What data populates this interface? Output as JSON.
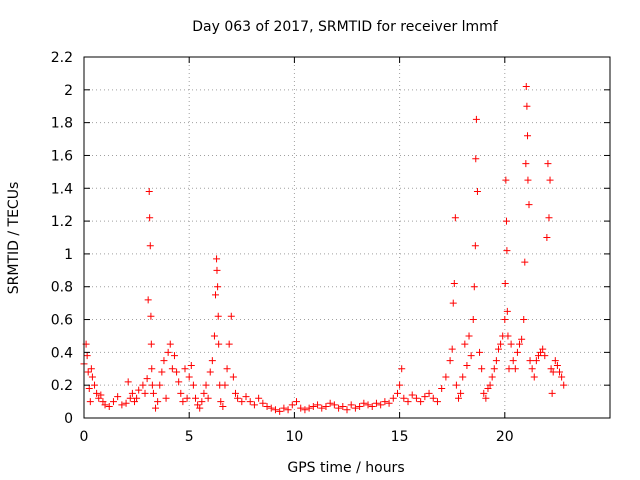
{
  "chart_data": {
    "type": "scatter",
    "title": "Day 063 of 2017, SRMTID for receiver lmmf",
    "xlabel": "GPS time / hours",
    "ylabel": "SRMTID / TECUs",
    "xlim": [
      0,
      25
    ],
    "ylim": [
      0,
      2.2
    ],
    "xticks": [
      0,
      5,
      10,
      15,
      20
    ],
    "xtick_labels": [
      "0",
      "5",
      "10",
      "15",
      "20"
    ],
    "yticks": [
      0,
      0.2,
      0.4,
      0.6,
      0.8,
      1,
      1.2,
      1.4,
      1.6,
      1.8,
      2,
      2.2
    ],
    "ytick_labels": [
      "0",
      "0.2",
      "0.4",
      "0.6",
      "0.8",
      "1",
      "1.2",
      "1.4",
      "1.6",
      "1.8",
      "2",
      "2.2"
    ],
    "grid": true,
    "marker": "plus",
    "color": "#ff0000",
    "series": [
      {
        "name": "SRMTID",
        "x": [
          0.0,
          0.1,
          0.15,
          0.2,
          0.25,
          0.3,
          0.35,
          0.4,
          0.5,
          0.6,
          0.7,
          0.8,
          0.9,
          1.0,
          1.2,
          1.4,
          1.6,
          1.8,
          2.0,
          2.1,
          2.2,
          2.3,
          2.4,
          2.5,
          2.6,
          2.8,
          2.9,
          3.0,
          3.05,
          3.1,
          3.12,
          3.15,
          3.18,
          3.2,
          3.22,
          3.25,
          3.3,
          3.4,
          3.5,
          3.6,
          3.7,
          3.8,
          3.9,
          4.0,
          4.1,
          4.2,
          4.3,
          4.4,
          4.5,
          4.6,
          4.7,
          4.8,
          4.9,
          5.0,
          5.1,
          5.2,
          5.3,
          5.4,
          5.5,
          5.6,
          5.7,
          5.8,
          5.9,
          6.0,
          6.1,
          6.2,
          6.25,
          6.3,
          6.32,
          6.35,
          6.38,
          6.4,
          6.45,
          6.5,
          6.6,
          6.7,
          6.8,
          6.9,
          7.0,
          7.1,
          7.2,
          7.3,
          7.5,
          7.7,
          7.9,
          8.1,
          8.3,
          8.5,
          8.7,
          8.9,
          9.1,
          9.3,
          9.5,
          9.7,
          9.9,
          10.1,
          10.3,
          10.5,
          10.7,
          10.9,
          11.1,
          11.3,
          11.5,
          11.7,
          11.9,
          12.1,
          12.3,
          12.5,
          12.7,
          12.9,
          13.1,
          13.3,
          13.5,
          13.7,
          13.9,
          14.1,
          14.3,
          14.5,
          14.7,
          14.9,
          15.0,
          15.1,
          15.2,
          15.4,
          15.6,
          15.8,
          16.0,
          16.2,
          16.4,
          16.6,
          16.8,
          17.0,
          17.2,
          17.4,
          17.5,
          17.55,
          17.6,
          17.65,
          17.7,
          17.8,
          17.9,
          18.0,
          18.1,
          18.2,
          18.3,
          18.4,
          18.5,
          18.55,
          18.6,
          18.62,
          18.65,
          18.7,
          18.8,
          18.9,
          19.0,
          19.1,
          19.2,
          19.3,
          19.4,
          19.5,
          19.6,
          19.7,
          19.8,
          19.9,
          20.0,
          20.02,
          20.05,
          20.08,
          20.1,
          20.12,
          20.15,
          20.2,
          20.3,
          20.4,
          20.5,
          20.6,
          20.7,
          20.8,
          20.9,
          20.95,
          21.0,
          21.02,
          21.05,
          21.08,
          21.1,
          21.15,
          21.2,
          21.3,
          21.4,
          21.5,
          21.6,
          21.7,
          21.8,
          21.9,
          22.0,
          22.05,
          22.1,
          22.15,
          22.2,
          22.25,
          22.3,
          22.4,
          22.5,
          22.6,
          22.7,
          22.8
        ],
        "y": [
          0.33,
          0.45,
          0.38,
          0.28,
          0.18,
          0.1,
          0.3,
          0.25,
          0.2,
          0.15,
          0.12,
          0.14,
          0.1,
          0.08,
          0.07,
          0.1,
          0.13,
          0.08,
          0.09,
          0.22,
          0.12,
          0.15,
          0.1,
          0.12,
          0.17,
          0.2,
          0.15,
          0.24,
          0.72,
          1.38,
          1.22,
          1.05,
          0.62,
          0.45,
          0.3,
          0.2,
          0.15,
          0.06,
          0.1,
          0.2,
          0.28,
          0.35,
          0.12,
          0.4,
          0.45,
          0.3,
          0.38,
          0.28,
          0.22,
          0.15,
          0.1,
          0.3,
          0.12,
          0.25,
          0.32,
          0.2,
          0.12,
          0.08,
          0.06,
          0.1,
          0.15,
          0.2,
          0.12,
          0.28,
          0.35,
          0.5,
          0.75,
          0.97,
          0.9,
          0.8,
          0.62,
          0.45,
          0.2,
          0.1,
          0.07,
          0.2,
          0.3,
          0.45,
          0.62,
          0.25,
          0.15,
          0.12,
          0.1,
          0.13,
          0.1,
          0.08,
          0.12,
          0.09,
          0.07,
          0.06,
          0.05,
          0.04,
          0.06,
          0.05,
          0.08,
          0.1,
          0.06,
          0.05,
          0.06,
          0.07,
          0.08,
          0.06,
          0.07,
          0.09,
          0.08,
          0.06,
          0.07,
          0.05,
          0.08,
          0.06,
          0.07,
          0.09,
          0.08,
          0.07,
          0.09,
          0.08,
          0.1,
          0.09,
          0.12,
          0.15,
          0.2,
          0.3,
          0.12,
          0.1,
          0.14,
          0.12,
          0.1,
          0.13,
          0.15,
          0.12,
          0.1,
          0.18,
          0.25,
          0.35,
          0.42,
          0.7,
          0.82,
          1.22,
          0.2,
          0.12,
          0.15,
          0.25,
          0.45,
          0.32,
          0.5,
          0.38,
          0.6,
          0.8,
          1.05,
          1.58,
          1.82,
          1.38,
          0.4,
          0.3,
          0.15,
          0.12,
          0.18,
          0.2,
          0.25,
          0.3,
          0.35,
          0.42,
          0.45,
          0.5,
          0.6,
          0.82,
          1.45,
          1.2,
          1.02,
          0.65,
          0.5,
          0.3,
          0.45,
          0.35,
          0.3,
          0.4,
          0.45,
          0.48,
          0.6,
          0.95,
          1.55,
          2.02,
          1.9,
          1.72,
          1.45,
          1.3,
          0.35,
          0.3,
          0.25,
          0.35,
          0.38,
          0.4,
          0.42,
          0.38,
          1.1,
          1.55,
          1.22,
          1.45,
          0.3,
          0.15,
          0.28,
          0.35,
          0.32,
          0.28,
          0.25,
          0.2
        ]
      }
    ]
  }
}
